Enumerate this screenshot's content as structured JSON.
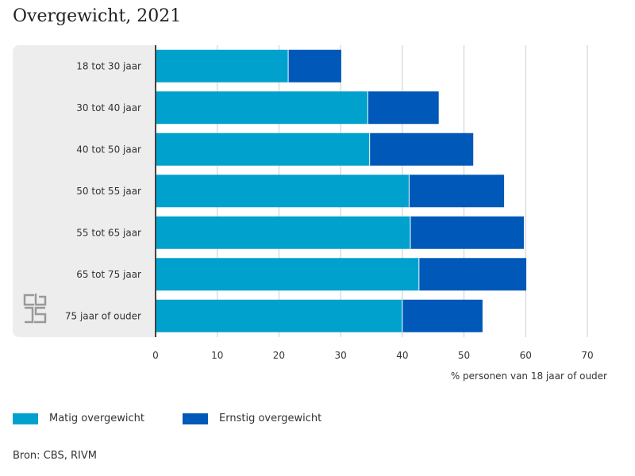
{
  "title": "Overgewicht, 2021",
  "source": "Bron: CBS, RIVM",
  "colors": {
    "matig": "#00a1cd",
    "ernstig": "#0058b8",
    "panel": "#ededed",
    "grid": "#cccccc",
    "axis": "#444444",
    "logo": "#999999"
  },
  "logo_icon": "cbs-logo-icon",
  "chart_data": {
    "type": "bar",
    "orientation": "horizontal",
    "stacked": true,
    "categories": [
      "18 tot 30 jaar",
      "30 tot 40 jaar",
      "40 tot 50 jaar",
      "50 tot 55 jaar",
      "55 tot 65 jaar",
      "65 tot 75 jaar",
      "75 jaar of ouder"
    ],
    "series": [
      {
        "name": "Matig overgewicht",
        "values": [
          21.5,
          34.4,
          34.7,
          41.1,
          41.3,
          42.7,
          40.0
        ]
      },
      {
        "name": "Ernstig overgewicht",
        "values": [
          8.6,
          11.5,
          16.8,
          15.4,
          18.4,
          17.4,
          13.0
        ]
      }
    ],
    "xlabel": "% personen van 18 jaar of ouder",
    "ylabel": "",
    "xlim": [
      0,
      70
    ],
    "xticks": [
      0,
      10,
      20,
      30,
      40,
      50,
      60,
      70
    ],
    "grid": true,
    "legend_position": "bottom-left"
  }
}
